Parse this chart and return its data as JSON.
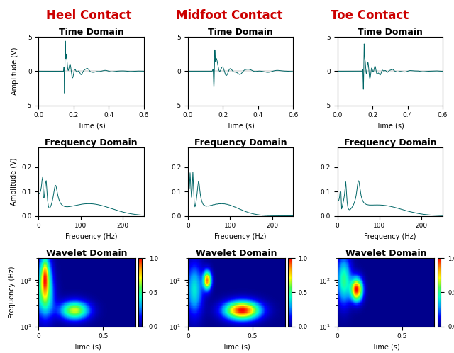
{
  "titles_col": [
    "Heel Contact",
    "Midfoot Contact",
    "Toe Contact"
  ],
  "titles_col_color": "#cc0000",
  "row_titles": [
    "Time Domain",
    "Frequency Domain",
    "Wavelet Domain"
  ],
  "time_xlim": [
    0,
    0.6
  ],
  "time_ylim": [
    -5,
    5
  ],
  "freq_xlim": [
    0,
    250
  ],
  "freq_ylim": [
    0,
    0.28
  ],
  "wavelet_xlim": [
    0,
    0.75
  ],
  "line_color": "#006666",
  "background": "#ffffff",
  "title_fontsize": 9,
  "col_title_fontsize": 12,
  "axis_label_fontsize": 7,
  "tick_fontsize": 6.5
}
